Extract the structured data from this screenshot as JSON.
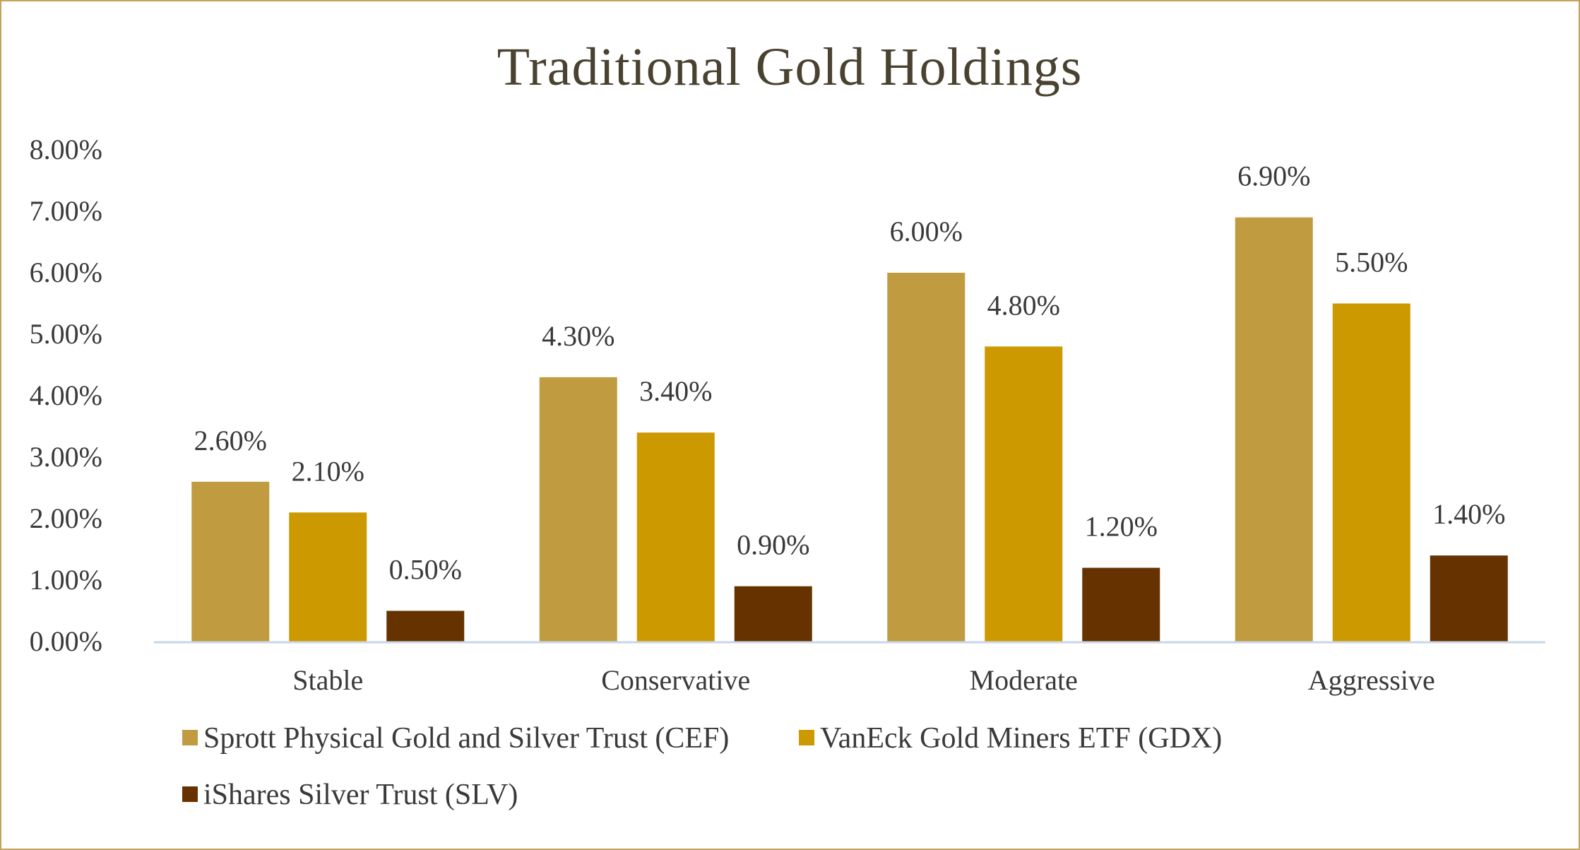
{
  "chart_data": {
    "type": "bar",
    "title": "Traditional Gold Holdings",
    "categories": [
      "Stable",
      "Conservative",
      "Moderate",
      "Aggressive"
    ],
    "series": [
      {
        "name": "Sprott Physical Gold and Silver Trust (CEF)",
        "color": "#c09b40",
        "values": [
          2.6,
          4.3,
          6.0,
          6.9
        ],
        "labels": [
          "2.60%",
          "4.30%",
          "6.00%",
          "6.90%"
        ]
      },
      {
        "name": "VanEck Gold Miners ETF (GDX)",
        "color": "#cc9900",
        "values": [
          2.1,
          3.4,
          4.8,
          5.5
        ],
        "labels": [
          "2.10%",
          "3.40%",
          "4.80%",
          "5.50%"
        ]
      },
      {
        "name": "iShares Silver Trust (SLV)",
        "color": "#663300",
        "values": [
          0.5,
          0.9,
          1.2,
          1.4
        ],
        "labels": [
          "0.50%",
          "0.90%",
          "1.20%",
          "1.40%"
        ]
      }
    ],
    "yticks": [
      "0.00%",
      "1.00%",
      "2.00%",
      "3.00%",
      "4.00%",
      "5.00%",
      "6.00%",
      "7.00%",
      "8.00%"
    ],
    "ylim": [
      0,
      8
    ],
    "grid": false,
    "legend_position": "bottom",
    "xlabel": "",
    "ylabel": ""
  },
  "colors": {
    "frame": "#c4a35a",
    "axis": "#c9d6ea",
    "title": "#4a4230",
    "text": "#3a3a3a"
  }
}
